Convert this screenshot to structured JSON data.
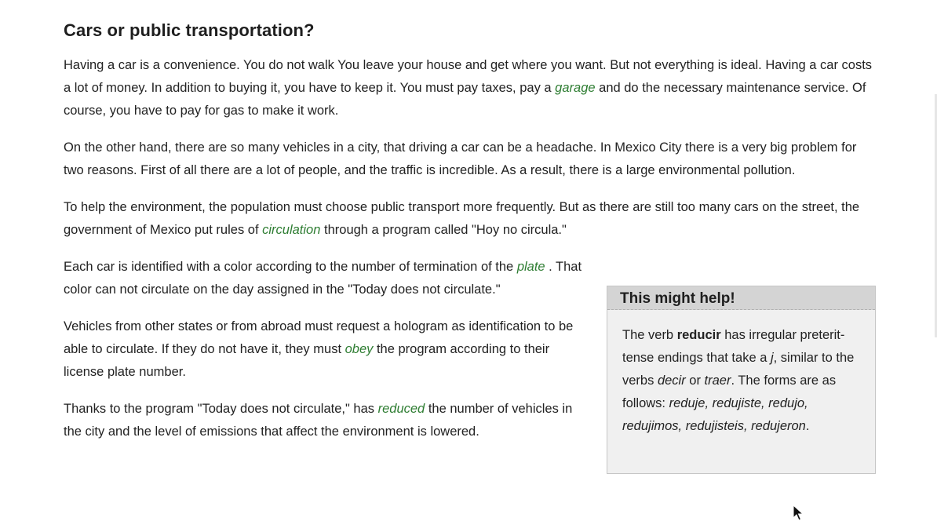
{
  "article": {
    "title": "Cars or public transportation?",
    "p1": {
      "a": "Having a car is a convenience. You do not walk You leave your house and get where you want. But not everything is ideal. Having a car costs a lot of money. In addition to buying it, you have to keep it. You must pay taxes, pay a ",
      "vocab": "garage",
      "b": " and do the necessary maintenance service. Of course, you have to pay for gas to make it work."
    },
    "p2": "On the other hand, there are so many vehicles in a city, that driving a car can be a headache. In Mexico City there is a very big problem for two reasons. First of all there are a lot of people, and the traffic is incredible. As a result, there is a large environmental pollution.",
    "p3": {
      "a": "To help the environment, the population must choose public transport more frequently. But as there are still too many cars on the street, the government of Mexico put rules of ",
      "vocab": "circulation",
      "b": " through a program called \"Hoy no circula.\""
    },
    "p4": {
      "a": "Each car is identified with a color according to the number of termination of the ",
      "vocab": "plate",
      "b": " . That color can not circulate on the day assigned in the \"Today does not circulate.\""
    },
    "p5": {
      "a": "Vehicles from other states or from abroad must request a hologram as identification to be able to circulate. If they do not have it, they must ",
      "vocab": "obey",
      "b": " the program according to their license plate number."
    },
    "p6": {
      "a": "Thanks to the program \"Today does not circulate,\" has ",
      "vocab": "reduced",
      "b": " the number of vehicles in the city and the level of emissions that affect the environment is lowered."
    }
  },
  "helpbox": {
    "title": "This might help!",
    "t1": "The verb ",
    "verb": "reducir",
    "t2": " has irregular preterit-tense endings that take a ",
    "letter": "j",
    "t3": ", similar to the verbs ",
    "decir": "decir",
    "t4": " or ",
    "traer": "traer",
    "t5": ". The forms are as follows: ",
    "forms": "reduje, redujiste, redujo, redujimos, redujisteis, redujeron",
    "t6": "."
  },
  "colors": {
    "vocab": "#2e7d32",
    "helpbox_bg": "#f0f0f0",
    "helpbox_header": "#d4d4d4"
  }
}
